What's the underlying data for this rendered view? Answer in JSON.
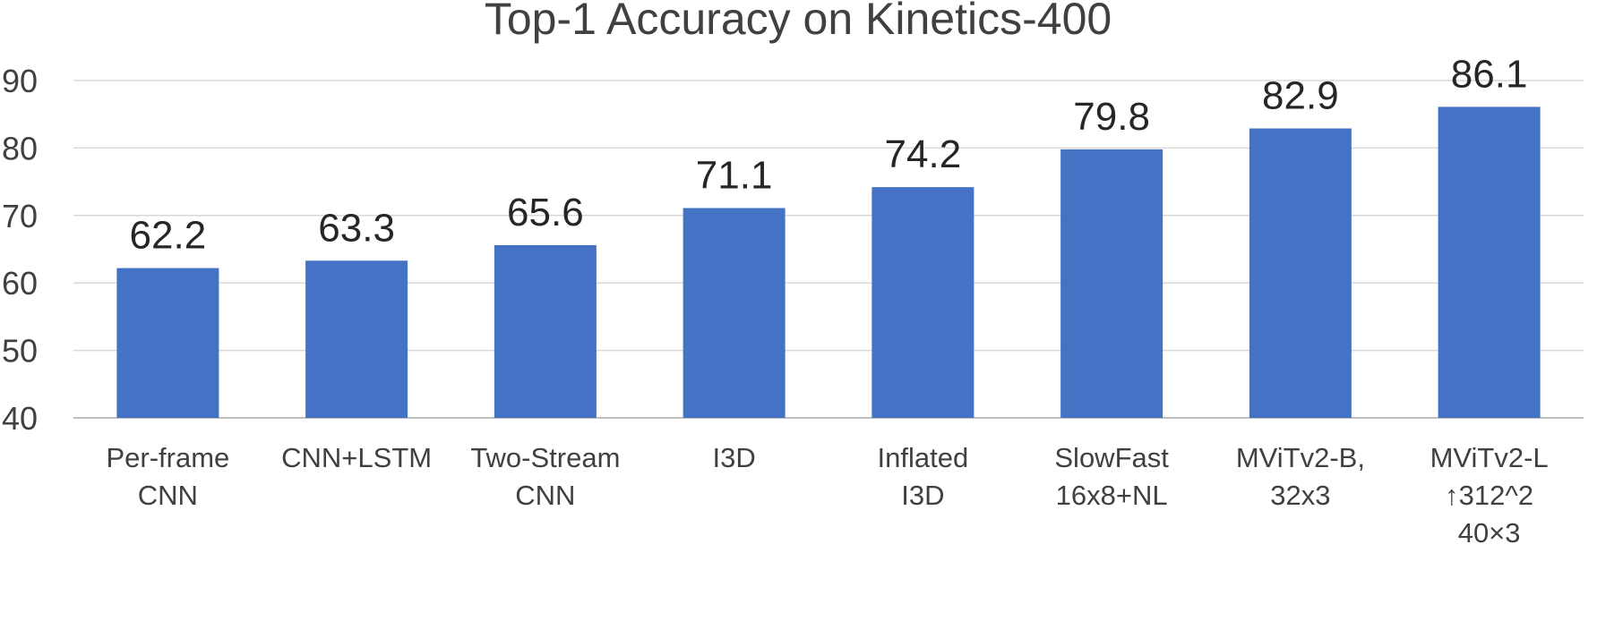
{
  "chart_data": {
    "type": "bar",
    "title": "Top-1 Accuracy on Kinetics-400",
    "xlabel": "",
    "ylabel": "",
    "ylim": [
      40,
      90
    ],
    "yticks": [
      40,
      50,
      60,
      70,
      80,
      90
    ],
    "grid": true,
    "legend": "none",
    "categories": [
      [
        "Per-frame",
        "CNN"
      ],
      [
        "CNN+LSTM"
      ],
      [
        "Two-Stream",
        "CNN"
      ],
      [
        "I3D"
      ],
      [
        "Inflated",
        "I3D"
      ],
      [
        "SlowFast",
        "16x8+NL"
      ],
      [
        "MViTv2-B,",
        "32x3"
      ],
      [
        "MViTv2-L",
        "↑312^2",
        "40×3"
      ]
    ],
    "values": [
      62.2,
      63.3,
      65.6,
      71.1,
      74.2,
      79.8,
      82.9,
      86.1
    ],
    "data_labels": [
      "62.2",
      "63.3",
      "65.6",
      "71.1",
      "74.2",
      "79.8",
      "82.9",
      "86.1"
    ],
    "bar_color": "#4472c4",
    "grid_color": "#d9d9d9",
    "text_color": "#404040"
  }
}
